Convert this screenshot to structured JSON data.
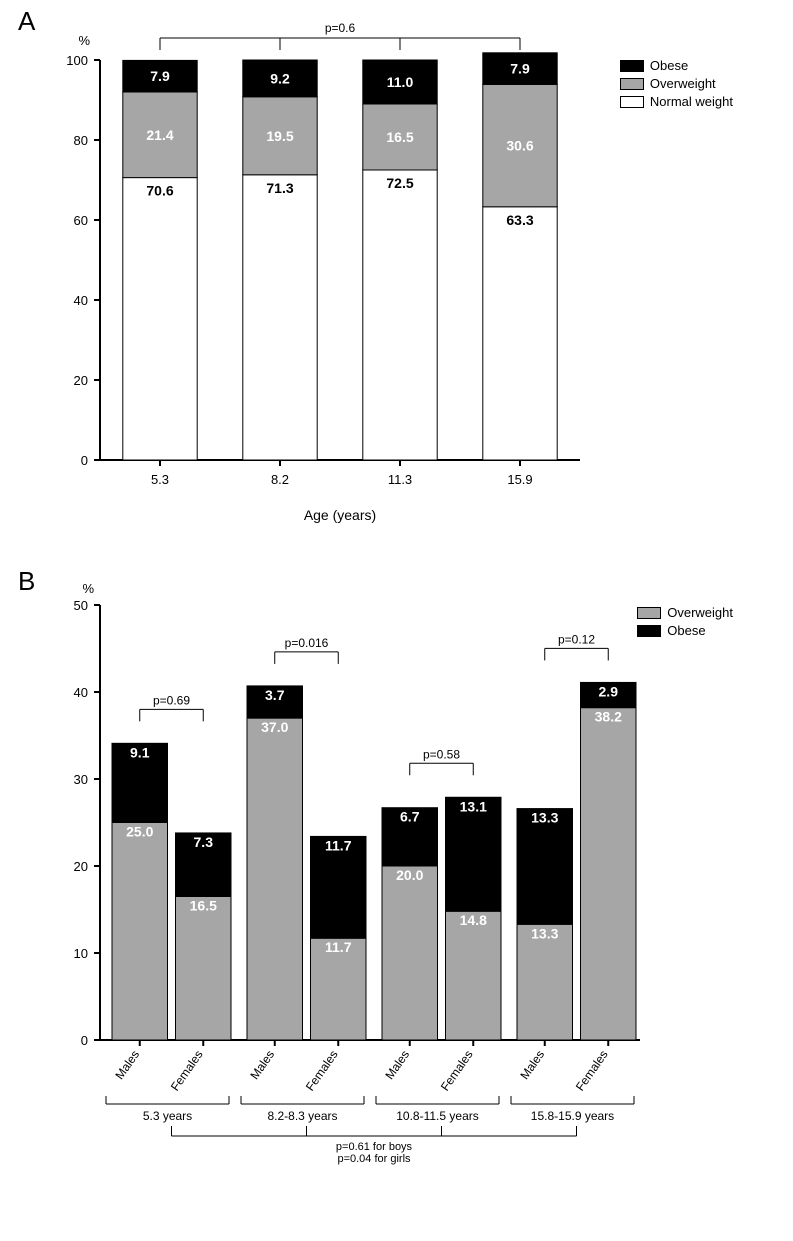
{
  "panelA": {
    "label": "A",
    "ylabel_pct": "%",
    "xlabel": "Age (years)",
    "ylim": [
      0,
      100
    ],
    "ytick_step": 20,
    "categories": [
      "5.3",
      "8.2",
      "11.3",
      "15.9"
    ],
    "series": [
      {
        "name": "Normal weight",
        "color": "#ffffff",
        "values": [
          70.6,
          71.3,
          72.5,
          63.3
        ]
      },
      {
        "name": "Overweight",
        "color": "#a6a6a6",
        "values": [
          21.4,
          19.5,
          16.5,
          30.6
        ]
      },
      {
        "name": "Obese",
        "color": "#000000",
        "values": [
          7.9,
          9.2,
          11.0,
          7.9
        ]
      }
    ],
    "legend_order": [
      "Obese",
      "Overweight",
      "Normal weight"
    ],
    "p_overall": "p=0.6",
    "bar_width": 0.62,
    "value_labels": {
      "normal": [
        "70.6",
        "71.3",
        "72.5",
        "63.3"
      ],
      "overweight": [
        "21.4",
        "19.5",
        "16.5",
        "30.6"
      ],
      "obese": [
        "7.9",
        "9.2",
        "11.0",
        "7.9"
      ]
    },
    "colors": {
      "axis": "#000000",
      "grid": "none",
      "bg": "#ffffff"
    }
  },
  "panelB": {
    "label": "B",
    "ylabel_pct": "%",
    "ylim": [
      0,
      50
    ],
    "ytick_step": 10,
    "groups": [
      "5.3 years",
      "8.2-8.3 years",
      "10.8-11.5 years",
      "15.8-15.9 years"
    ],
    "sex": [
      "Males",
      "Females"
    ],
    "series": [
      {
        "name": "Overweight",
        "color": "#a6a6a6"
      },
      {
        "name": "Obese",
        "color": "#000000"
      }
    ],
    "legend_order": [
      "Overweight",
      "Obese"
    ],
    "bars": [
      {
        "group": 0,
        "sex": "Males",
        "overweight": 25.0,
        "obese": 9.1
      },
      {
        "group": 0,
        "sex": "Females",
        "overweight": 16.5,
        "obese": 7.3
      },
      {
        "group": 1,
        "sex": "Males",
        "overweight": 37.0,
        "obese": 3.7
      },
      {
        "group": 1,
        "sex": "Females",
        "overweight": 11.7,
        "obese": 11.7
      },
      {
        "group": 2,
        "sex": "Males",
        "overweight": 20.0,
        "obese": 6.7
      },
      {
        "group": 2,
        "sex": "Females",
        "overweight": 14.8,
        "obese": 13.1
      },
      {
        "group": 3,
        "sex": "Males",
        "overweight": 13.3,
        "obese": 13.3
      },
      {
        "group": 3,
        "sex": "Females",
        "overweight": 38.2,
        "obese": 2.9
      }
    ],
    "p_values": [
      "p=0.69",
      "p=0.016",
      "p=0.58",
      "p=0.12"
    ],
    "footer_p": [
      "p=0.61 for boys",
      "p=0.04 for girls"
    ],
    "bar_width": 0.62
  }
}
